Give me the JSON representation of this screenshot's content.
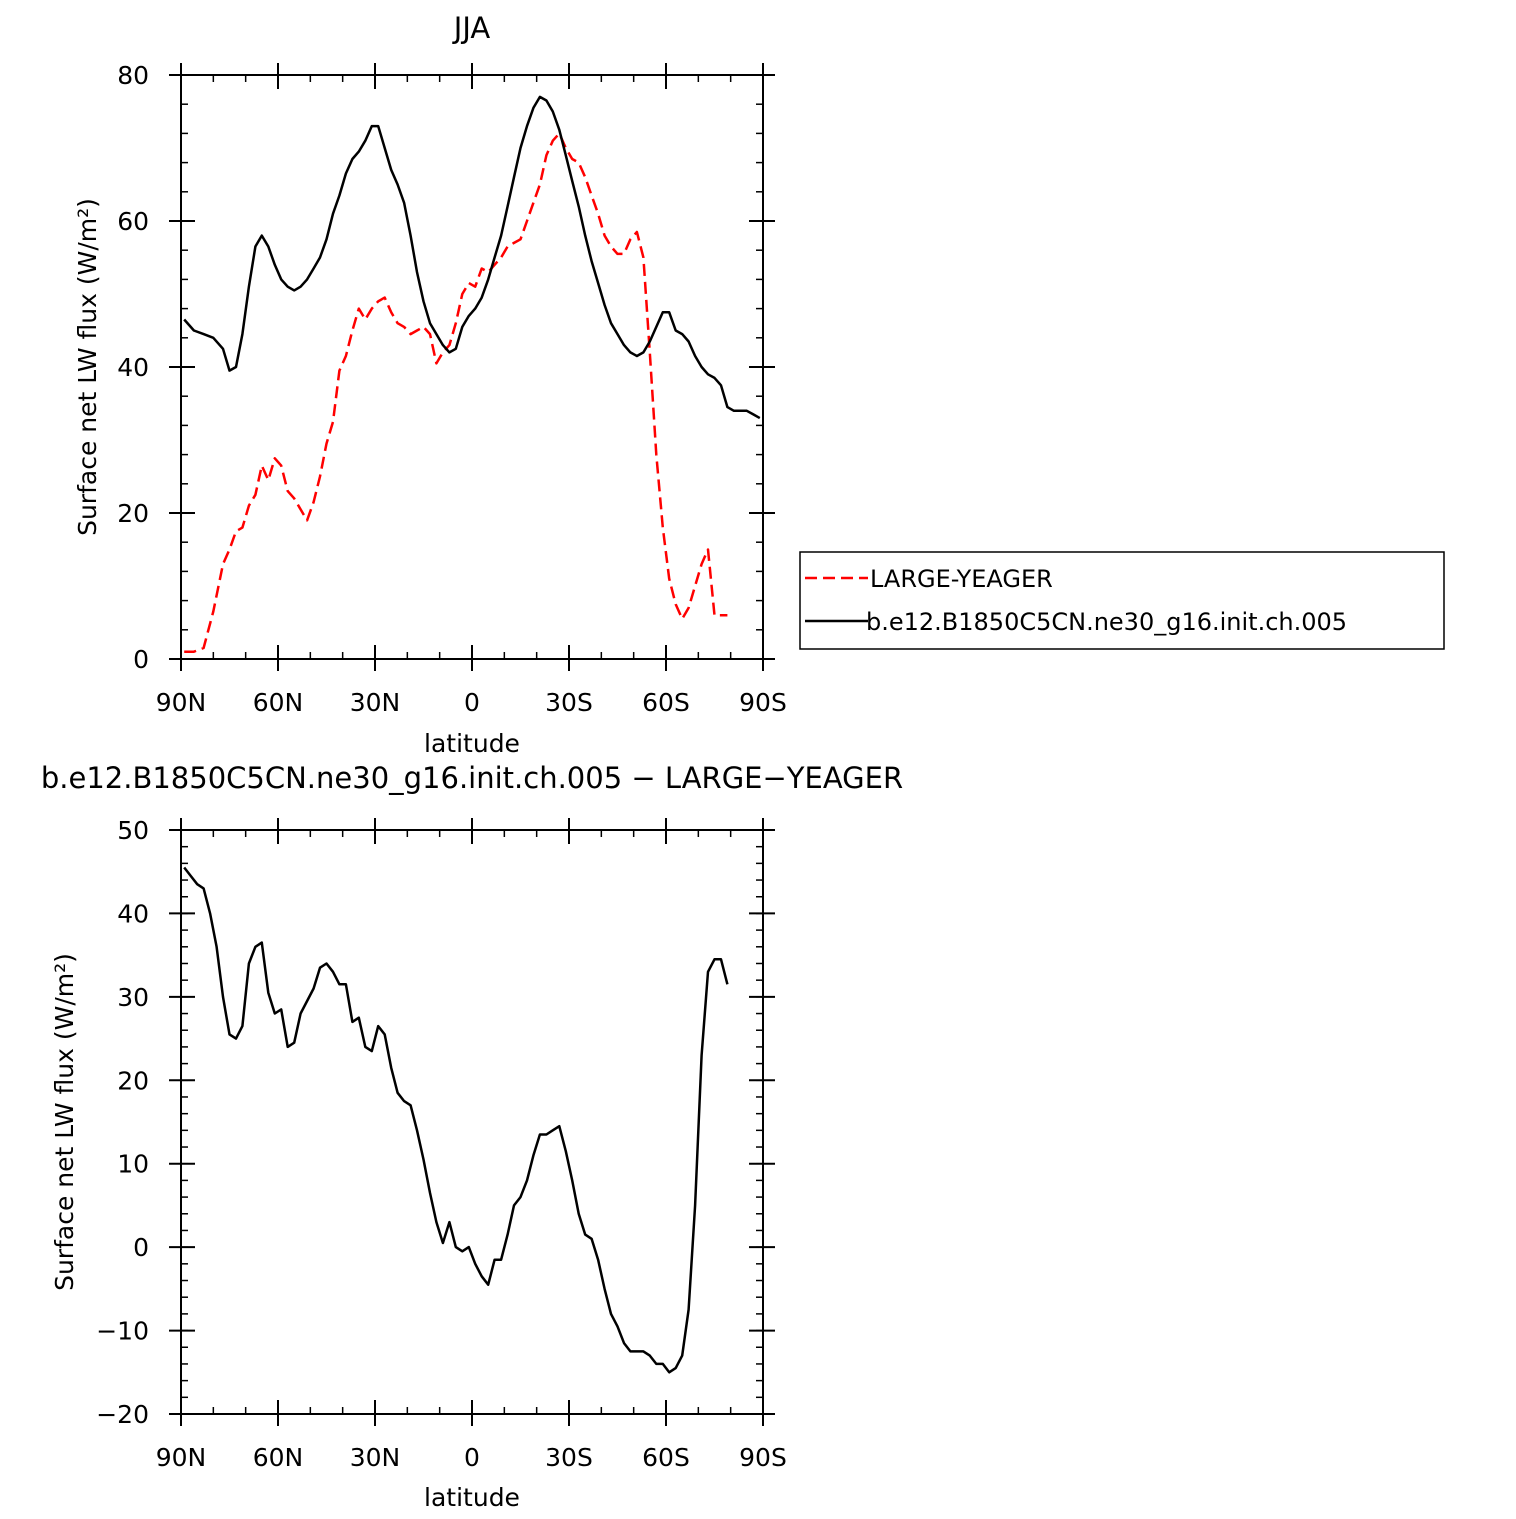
{
  "chart_data": [
    {
      "type": "line",
      "title": "JJA",
      "xlabel": "latitude",
      "ylabel": "Surface net LW flux (W/m²)",
      "xlim": [
        90,
        -90
      ],
      "ylim": [
        0,
        80
      ],
      "x_ticks": [
        90,
        60,
        30,
        0,
        -30,
        -60,
        -90
      ],
      "x_tick_labels": [
        "90N",
        "60N",
        "30N",
        "0",
        "30S",
        "60S",
        "90S"
      ],
      "y_ticks": [
        0,
        20,
        40,
        60,
        80
      ],
      "y_tick_labels": [
        "0",
        "20",
        "40",
        "60",
        "80"
      ],
      "legend_position": "right",
      "series": [
        {
          "name": "LARGE-YEAGER",
          "color": "#ff0000",
          "dash": "dashed",
          "x": [
            89,
            86,
            83,
            80,
            77,
            75,
            73,
            71,
            69,
            67,
            65,
            63,
            61,
            59,
            57,
            55,
            53,
            51,
            49,
            47,
            45,
            43,
            41,
            39,
            37,
            35,
            33,
            31,
            29,
            27,
            25,
            23,
            21,
            19,
            17,
            15,
            13,
            11,
            9,
            7,
            5,
            3,
            1,
            -1,
            -3,
            -5,
            -7,
            -9,
            -11,
            -13,
            -15,
            -17,
            -19,
            -21,
            -23,
            -25,
            -27,
            -29,
            -31,
            -33,
            -35,
            -37,
            -39,
            -41,
            -43,
            -45,
            -47,
            -49,
            -51,
            -53,
            -55,
            -57,
            -59,
            -61,
            -63,
            -65,
            -67,
            -69,
            -71,
            -73,
            -75,
            -77,
            -79
          ],
          "y": [
            1.0,
            1.0,
            1.5,
            6.5,
            13.0,
            15.0,
            17.5,
            18.0,
            21.0,
            22.5,
            26.5,
            24.5,
            27.5,
            26.5,
            23.0,
            22.0,
            20.5,
            19.0,
            21.5,
            25.0,
            29.5,
            32.5,
            39.5,
            41.5,
            45.0,
            48.0,
            46.5,
            48.0,
            49.0,
            49.5,
            47.5,
            46.0,
            45.5,
            44.5,
            45.0,
            45.5,
            44.5,
            40.5,
            42.0,
            43.0,
            46.0,
            50.0,
            51.5,
            51.0,
            53.5,
            53.0,
            54.0,
            55.0,
            56.5,
            57.0,
            57.5,
            60.0,
            62.5,
            65.0,
            69.0,
            71.0,
            72.0,
            70.0,
            68.5,
            68.0,
            66.0,
            63.5,
            61.0,
            58.0,
            56.5,
            55.5,
            55.5,
            57.5,
            58.5,
            55.0,
            42.0,
            28.0,
            18.0,
            11.0,
            7.5,
            5.5,
            7.0,
            10.0,
            13.0,
            15.0,
            6.0,
            6.0,
            6.0
          ]
        },
        {
          "name": "b.e12.B1850C5CN.ne30_g16.init.ch.005",
          "color": "#000000",
          "dash": "solid",
          "x": [
            89,
            86,
            83,
            80,
            77,
            75,
            73,
            71,
            69,
            67,
            65,
            63,
            61,
            59,
            57,
            55,
            53,
            51,
            49,
            47,
            45,
            43,
            41,
            39,
            37,
            35,
            33,
            31,
            29,
            27,
            25,
            23,
            21,
            19,
            17,
            15,
            13,
            11,
            9,
            7,
            5,
            3,
            1,
            -1,
            -3,
            -5,
            -7,
            -9,
            -11,
            -13,
            -15,
            -17,
            -19,
            -21,
            -23,
            -25,
            -27,
            -29,
            -31,
            -33,
            -35,
            -37,
            -39,
            -41,
            -43,
            -45,
            -47,
            -49,
            -51,
            -53,
            -55,
            -57,
            -59,
            -61,
            -63,
            -65,
            -67,
            -69,
            -71,
            -73,
            -75,
            -77,
            -79,
            -81,
            -83,
            -85,
            -87,
            -89
          ],
          "y": [
            46.5,
            45.0,
            44.5,
            44.0,
            42.5,
            39.5,
            40.0,
            44.5,
            51.0,
            56.5,
            58.0,
            56.5,
            54.0,
            52.0,
            51.0,
            50.5,
            51.0,
            52.0,
            53.5,
            55.0,
            57.5,
            61.0,
            63.5,
            66.5,
            68.5,
            69.5,
            71.0,
            73.0,
            73.0,
            70.0,
            67.0,
            65.0,
            62.5,
            58.0,
            53.0,
            49.0,
            46.0,
            44.5,
            43.0,
            42.0,
            42.5,
            45.5,
            47.0,
            48.0,
            49.5,
            52.0,
            55.0,
            58.0,
            62.0,
            66.0,
            70.0,
            73.0,
            75.5,
            77.0,
            76.5,
            75.0,
            72.5,
            69.0,
            65.5,
            62.0,
            58.0,
            54.5,
            51.5,
            48.5,
            46.0,
            44.5,
            43.0,
            42.0,
            41.5,
            42.0,
            43.5,
            45.5,
            47.5,
            47.5,
            45.0,
            44.5,
            43.5,
            41.5,
            40.0,
            39.0,
            38.5,
            37.5,
            34.5,
            34.0,
            34.0,
            34.0,
            33.5,
            33.0
          ]
        }
      ]
    },
    {
      "type": "line",
      "title": "b.e12.B1850C5CN.ne30_g16.init.ch.005 − LARGE−YEAGER",
      "xlabel": "latitude",
      "ylabel": "Surface net LW flux (W/m²)",
      "xlim": [
        90,
        -90
      ],
      "ylim": [
        -20,
        50
      ],
      "x_ticks": [
        90,
        60,
        30,
        0,
        -30,
        -60,
        -90
      ],
      "x_tick_labels": [
        "90N",
        "60N",
        "30N",
        "0",
        "30S",
        "60S",
        "90S"
      ],
      "y_ticks": [
        -20,
        -10,
        0,
        10,
        20,
        30,
        40,
        50
      ],
      "y_tick_labels": [
        "−20",
        "−10",
        "0",
        "10",
        "20",
        "30",
        "40",
        "50"
      ],
      "series": [
        {
          "color": "#000000",
          "dash": "solid",
          "x": [
            89,
            87,
            85,
            83,
            81,
            79,
            77,
            75,
            73,
            71,
            69,
            67,
            65,
            63,
            61,
            59,
            57,
            55,
            53,
            51,
            49,
            47,
            45,
            43,
            41,
            39,
            37,
            35,
            33,
            31,
            29,
            27,
            25,
            23,
            21,
            19,
            17,
            15,
            13,
            11,
            9,
            7,
            5,
            3,
            1,
            -1,
            -3,
            -5,
            -7,
            -9,
            -11,
            -13,
            -15,
            -17,
            -19,
            -21,
            -23,
            -25,
            -27,
            -29,
            -31,
            -33,
            -35,
            -37,
            -39,
            -41,
            -43,
            -45,
            -47,
            -49,
            -51,
            -53,
            -55,
            -57,
            -59,
            -61,
            -63,
            -65,
            -67,
            -69,
            -71,
            -73,
            -75,
            -77,
            -79
          ],
          "y": [
            45.5,
            44.5,
            43.5,
            43.0,
            40.0,
            36.0,
            30.0,
            25.5,
            25.0,
            26.5,
            34.0,
            36.0,
            36.5,
            30.5,
            28.0,
            28.5,
            24.0,
            24.5,
            28.0,
            29.5,
            31.0,
            33.5,
            34.0,
            33.0,
            31.5,
            31.5,
            27.0,
            27.5,
            24.0,
            23.5,
            26.5,
            25.5,
            21.5,
            18.5,
            17.5,
            17.0,
            14.0,
            10.5,
            6.5,
            3.0,
            0.5,
            3.0,
            0.0,
            -0.5,
            0.0,
            -2.0,
            -3.5,
            -4.5,
            -1.5,
            -1.5,
            1.5,
            5.0,
            6.0,
            8.0,
            11.0,
            13.5,
            13.5,
            14.0,
            14.5,
            11.5,
            8.0,
            4.0,
            1.5,
            1.0,
            -1.5,
            -5.0,
            -8.0,
            -9.5,
            -11.5,
            -12.5,
            -12.5,
            -12.5,
            -13.0,
            -14.0,
            -14.0,
            -15.0,
            -14.5,
            -13.0,
            -7.5,
            5.0,
            23.0,
            33.0,
            34.5,
            34.5,
            31.5
          ]
        }
      ]
    }
  ]
}
